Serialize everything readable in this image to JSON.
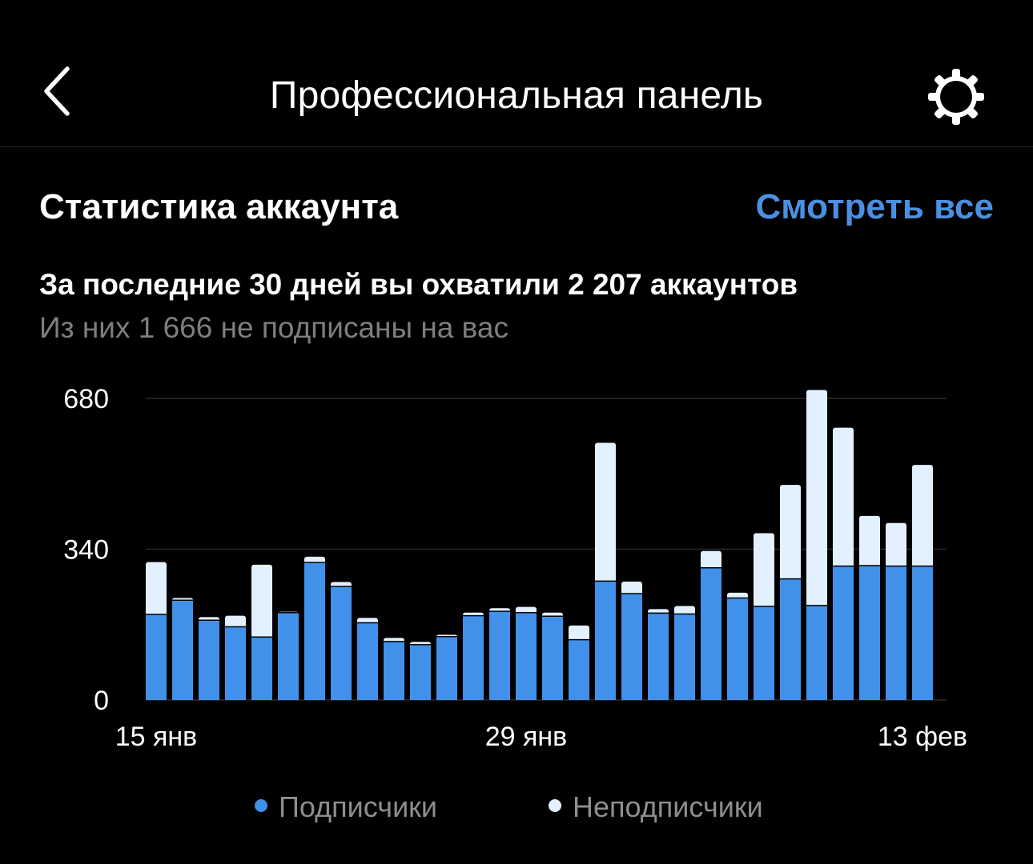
{
  "header": {
    "back_icon": "chevron-left-icon",
    "title": "Профессиональная панель",
    "settings_icon": "gear-icon"
  },
  "section": {
    "title": "Статистика аккаунта",
    "see_all": "Смотреть все"
  },
  "summary": {
    "headline": "За последние 30 дней вы охватили 2 207 аккаунтов",
    "subline": "Из них 1 666 не подписаны на вас"
  },
  "colors": {
    "followers": "#4190ea",
    "non_followers": "#e3f0fd",
    "accent": "#4a90e2",
    "background": "#000000"
  },
  "chart_data": {
    "type": "bar",
    "stacked": true,
    "y_ticks": [
      "680",
      "340",
      "0"
    ],
    "ylim": [
      0,
      680
    ],
    "x_tick_labels": [
      {
        "label": "15 янв",
        "index": 0
      },
      {
        "label": "29 янв",
        "index": 14
      },
      {
        "label": "13 фев",
        "index": 29
      }
    ],
    "categories": [
      "15 янв",
      "16 янв",
      "17 янв",
      "18 янв",
      "19 янв",
      "20 янв",
      "21 янв",
      "22 янв",
      "23 янв",
      "24 янв",
      "25 янв",
      "26 янв",
      "27 янв",
      "28 янв",
      "29 янв",
      "30 янв",
      "31 янв",
      "1 фев",
      "2 фев",
      "3 фев",
      "4 фев",
      "5 фев",
      "6 фев",
      "7 фев",
      "8 фев",
      "9 фев",
      "10 фев",
      "11 фев",
      "12 фев",
      "13 фев"
    ],
    "series": [
      {
        "name": "Подписчики",
        "color": "#4190ea",
        "values": [
          193,
          225,
          180,
          165,
          142,
          197,
          310,
          256,
          174,
          132,
          125,
          143,
          190,
          200,
          197,
          189,
          136,
          268,
          240,
          196,
          194,
          298,
          230,
          211,
          273,
          213,
          302,
          303,
          302,
          302
        ]
      },
      {
        "name": "Неподписчики",
        "color": "#e3f0fd",
        "values": [
          118,
          5,
          7,
          25,
          163,
          2,
          13,
          10,
          11,
          8,
          6,
          4,
          7,
          7,
          13,
          8,
          32,
          312,
          27,
          9,
          18,
          38,
          12,
          165,
          212,
          486,
          312,
          112,
          97,
          228
        ]
      }
    ],
    "legend": [
      "Подписчики",
      "Неподписчики"
    ],
    "legend_position": "bottom",
    "grid": true
  }
}
